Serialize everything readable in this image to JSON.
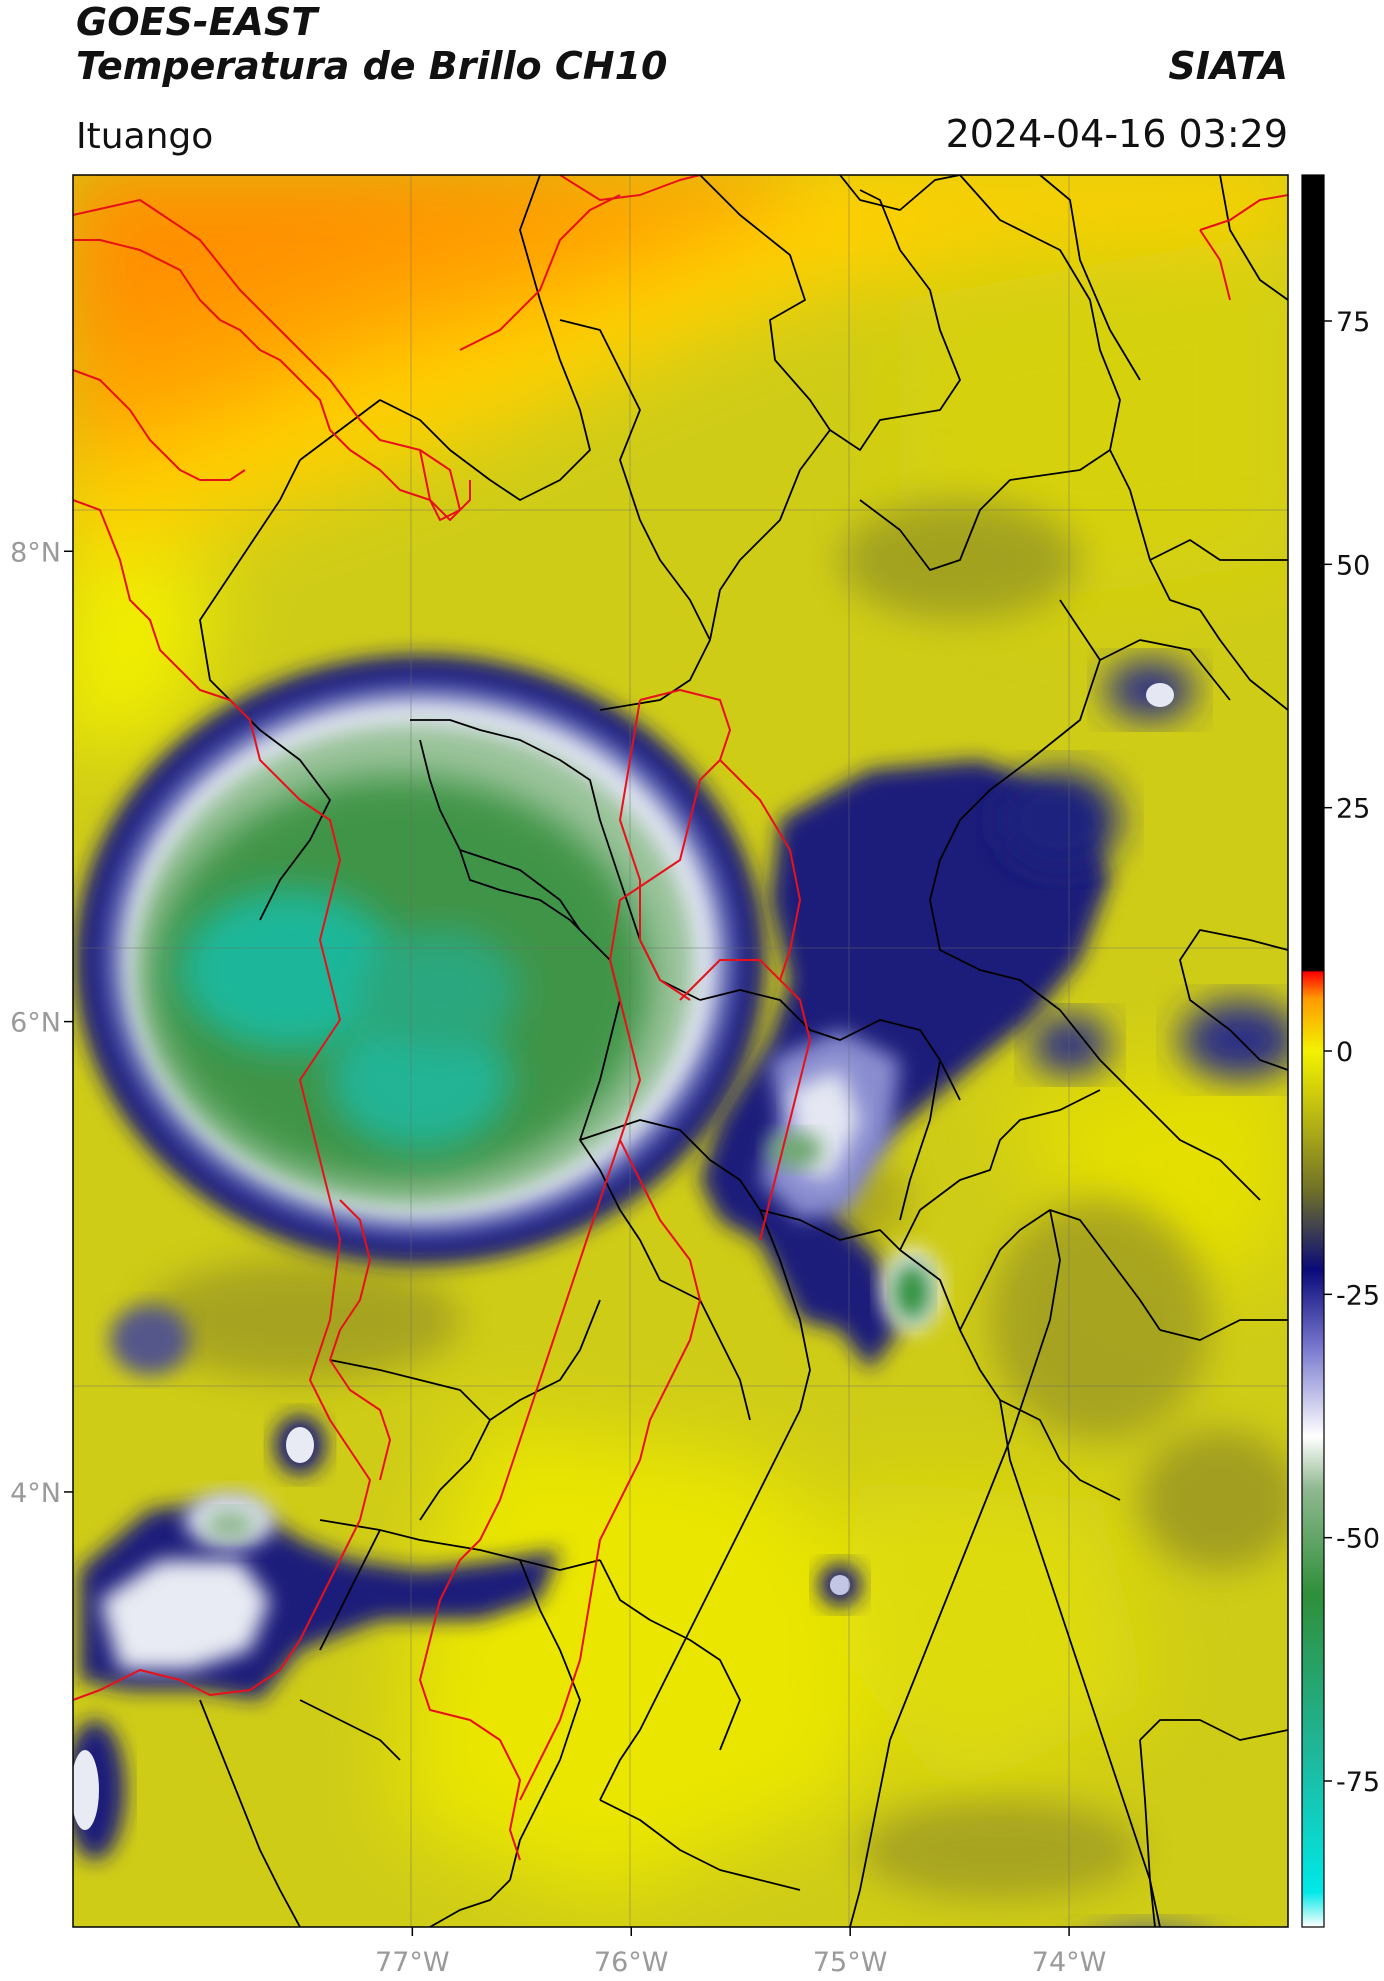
{
  "header": {
    "satellite": "GOES-EAST",
    "product": "Temperatura de Brillo CH10",
    "organization": "SIATA",
    "site": "Ituango",
    "timestamp": "2024-04-16 03:29"
  },
  "map": {
    "lon_range": [
      -78.55,
      -73.0
    ],
    "lat_range": [
      2.15,
      9.6
    ],
    "lon_ticks": [
      {
        "value": -77,
        "label": "77°W"
      },
      {
        "value": -76,
        "label": "76°W"
      },
      {
        "value": -75,
        "label": "75°W"
      },
      {
        "value": -74,
        "label": "74°W"
      }
    ],
    "lat_ticks": [
      {
        "value": 8,
        "label": "8°N"
      },
      {
        "value": 6,
        "label": "6°N"
      },
      {
        "value": 4,
        "label": "4°N"
      }
    ],
    "grid": true,
    "colors": {
      "cold_core": "#1fb79a",
      "green": "#2f8f3a",
      "navy": "#1a1f7a",
      "olive": "#c9c41a",
      "yellow": "#f2f200",
      "orange": "#ff9a00",
      "red_boundary": "#e8101a",
      "black_boundary": "#000000"
    }
  },
  "colorbar": {
    "range": [
      -90,
      90
    ],
    "ticks": [
      {
        "value": 75,
        "label": "75"
      },
      {
        "value": 50,
        "label": "50"
      },
      {
        "value": 25,
        "label": "25"
      },
      {
        "value": 0,
        "label": "0"
      },
      {
        "value": -25,
        "label": "-25"
      },
      {
        "value": -50,
        "label": "-50"
      },
      {
        "value": -75,
        "label": "-75"
      }
    ]
  }
}
